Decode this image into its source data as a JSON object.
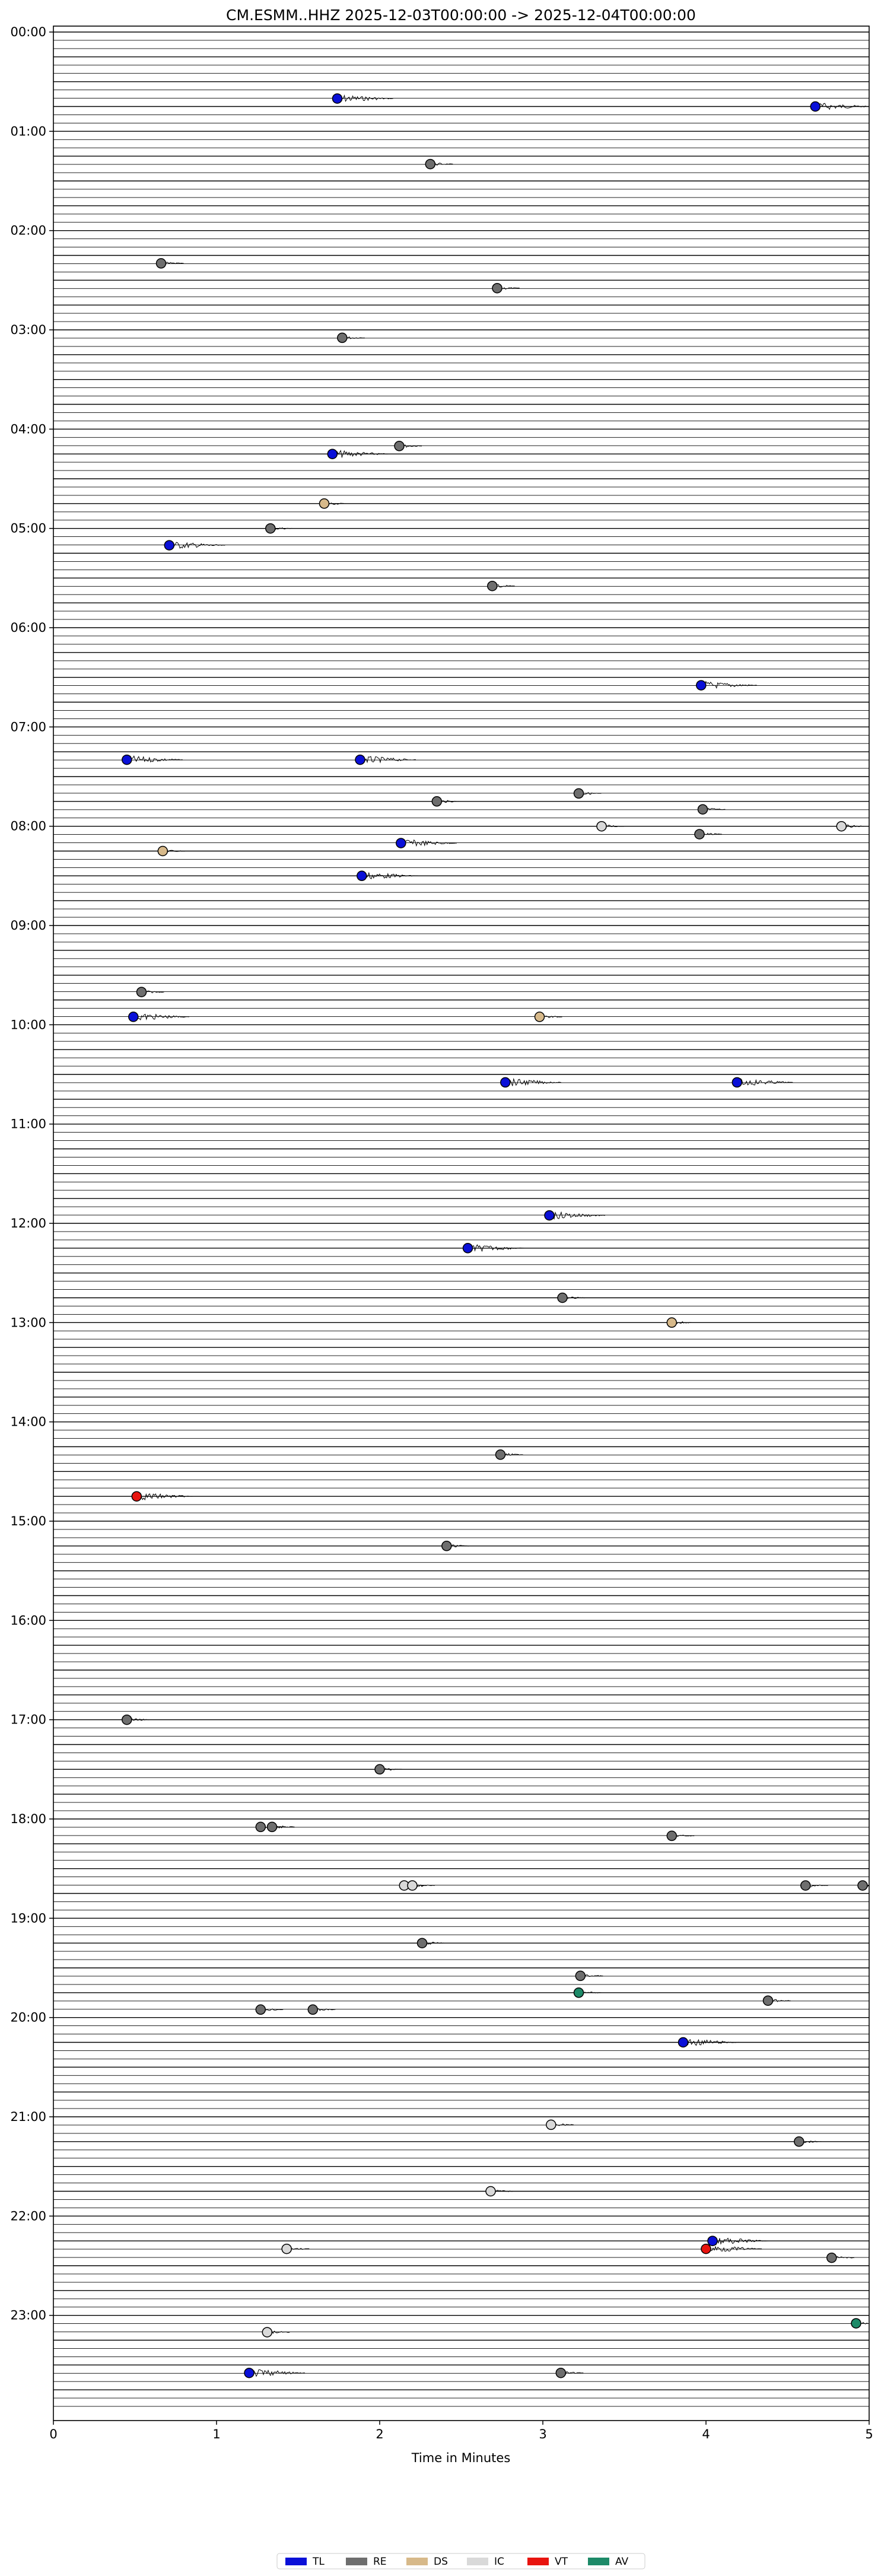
{
  "chart_data": {
    "type": "scatter",
    "title": "CM.ESMM..HHZ  2025-12-03T00:00:00 -> 2025-12-04T00:00:00",
    "xlabel": "Time in Minutes",
    "ylabel": "",
    "xlim": [
      0,
      5
    ],
    "ylim_hours": [
      0,
      24
    ],
    "x_ticks": [
      "0",
      "1",
      "2",
      "3",
      "4",
      "5"
    ],
    "y_ticks": [
      "00:00",
      "01:00",
      "02:00",
      "03:00",
      "04:00",
      "05:00",
      "06:00",
      "07:00",
      "08:00",
      "09:00",
      "10:00",
      "11:00",
      "12:00",
      "13:00",
      "14:00",
      "15:00",
      "16:00",
      "17:00",
      "18:00",
      "19:00",
      "20:00",
      "21:00",
      "22:00",
      "23:00"
    ],
    "legend_placement": "bottom-center",
    "legend": [
      {
        "code": "TL",
        "color": "#0a10d8"
      },
      {
        "code": "RE",
        "color": "#6e6e6e"
      },
      {
        "code": "DS",
        "color": "#d7b98a"
      },
      {
        "code": "IC",
        "color": "#d9d9d9"
      },
      {
        "code": "VT",
        "color": "#e8140f"
      },
      {
        "code": "AV",
        "color": "#1d8a68"
      }
    ],
    "events": [
      {
        "x": 1.74,
        "hour": 0.67,
        "cls": "TL"
      },
      {
        "x": 4.67,
        "hour": 0.75,
        "cls": "TL"
      },
      {
        "x": 2.31,
        "hour": 1.33,
        "cls": "RE"
      },
      {
        "x": 0.66,
        "hour": 2.33,
        "cls": "RE"
      },
      {
        "x": 2.72,
        "hour": 2.58,
        "cls": "RE"
      },
      {
        "x": 1.77,
        "hour": 3.08,
        "cls": "RE"
      },
      {
        "x": 2.12,
        "hour": 4.17,
        "cls": "RE"
      },
      {
        "x": 1.71,
        "hour": 4.25,
        "cls": "TL"
      },
      {
        "x": 1.66,
        "hour": 4.75,
        "cls": "DS"
      },
      {
        "x": 1.33,
        "hour": 5.0,
        "cls": "RE"
      },
      {
        "x": 0.71,
        "hour": 5.17,
        "cls": "TL"
      },
      {
        "x": 2.69,
        "hour": 5.58,
        "cls": "RE"
      },
      {
        "x": 3.97,
        "hour": 6.58,
        "cls": "TL"
      },
      {
        "x": 0.45,
        "hour": 7.33,
        "cls": "TL"
      },
      {
        "x": 1.88,
        "hour": 7.33,
        "cls": "TL"
      },
      {
        "x": 2.35,
        "hour": 7.75,
        "cls": "RE"
      },
      {
        "x": 3.22,
        "hour": 7.67,
        "cls": "RE"
      },
      {
        "x": 3.98,
        "hour": 7.83,
        "cls": "RE"
      },
      {
        "x": 3.36,
        "hour": 8.0,
        "cls": "IC"
      },
      {
        "x": 4.83,
        "hour": 8.0,
        "cls": "IC"
      },
      {
        "x": 3.96,
        "hour": 8.08,
        "cls": "RE"
      },
      {
        "x": 2.13,
        "hour": 8.17,
        "cls": "TL"
      },
      {
        "x": 0.67,
        "hour": 8.25,
        "cls": "DS"
      },
      {
        "x": 1.89,
        "hour": 8.5,
        "cls": "TL"
      },
      {
        "x": 0.54,
        "hour": 9.67,
        "cls": "RE"
      },
      {
        "x": 0.49,
        "hour": 9.92,
        "cls": "TL"
      },
      {
        "x": 2.98,
        "hour": 9.92,
        "cls": "DS"
      },
      {
        "x": 2.77,
        "hour": 10.58,
        "cls": "TL"
      },
      {
        "x": 4.19,
        "hour": 10.58,
        "cls": "TL"
      },
      {
        "x": 3.04,
        "hour": 11.92,
        "cls": "TL"
      },
      {
        "x": 2.54,
        "hour": 12.25,
        "cls": "TL"
      },
      {
        "x": 3.12,
        "hour": 12.75,
        "cls": "RE"
      },
      {
        "x": 3.79,
        "hour": 13.0,
        "cls": "DS"
      },
      {
        "x": 2.74,
        "hour": 14.33,
        "cls": "RE"
      },
      {
        "x": 0.51,
        "hour": 14.75,
        "cls": "VT"
      },
      {
        "x": 2.41,
        "hour": 15.25,
        "cls": "RE"
      },
      {
        "x": 0.45,
        "hour": 17.0,
        "cls": "RE"
      },
      {
        "x": 2.0,
        "hour": 17.5,
        "cls": "RE"
      },
      {
        "x": 1.27,
        "hour": 18.08,
        "cls": "RE"
      },
      {
        "x": 1.34,
        "hour": 18.08,
        "cls": "RE"
      },
      {
        "x": 3.79,
        "hour": 18.17,
        "cls": "RE"
      },
      {
        "x": 2.15,
        "hour": 18.67,
        "cls": "IC"
      },
      {
        "x": 2.2,
        "hour": 18.67,
        "cls": "IC"
      },
      {
        "x": 4.61,
        "hour": 18.67,
        "cls": "RE"
      },
      {
        "x": 4.96,
        "hour": 18.67,
        "cls": "RE"
      },
      {
        "x": 2.26,
        "hour": 19.25,
        "cls": "RE"
      },
      {
        "x": 3.23,
        "hour": 19.58,
        "cls": "RE"
      },
      {
        "x": 3.22,
        "hour": 19.75,
        "cls": "AV"
      },
      {
        "x": 4.38,
        "hour": 19.83,
        "cls": "RE"
      },
      {
        "x": 1.27,
        "hour": 19.92,
        "cls": "RE"
      },
      {
        "x": 1.59,
        "hour": 19.92,
        "cls": "RE"
      },
      {
        "x": 3.86,
        "hour": 20.25,
        "cls": "TL"
      },
      {
        "x": 3.05,
        "hour": 21.08,
        "cls": "IC"
      },
      {
        "x": 4.57,
        "hour": 21.25,
        "cls": "RE"
      },
      {
        "x": 2.68,
        "hour": 21.75,
        "cls": "IC"
      },
      {
        "x": 4.04,
        "hour": 22.25,
        "cls": "TL"
      },
      {
        "x": 4.0,
        "hour": 22.33,
        "cls": "VT"
      },
      {
        "x": 1.43,
        "hour": 22.33,
        "cls": "IC"
      },
      {
        "x": 4.77,
        "hour": 22.42,
        "cls": "RE"
      },
      {
        "x": 4.92,
        "hour": 23.08,
        "cls": "AV"
      },
      {
        "x": 1.31,
        "hour": 23.17,
        "cls": "IC"
      },
      {
        "x": 1.2,
        "hour": 23.58,
        "cls": "TL"
      },
      {
        "x": 3.11,
        "hour": 23.58,
        "cls": "RE"
      }
    ]
  }
}
